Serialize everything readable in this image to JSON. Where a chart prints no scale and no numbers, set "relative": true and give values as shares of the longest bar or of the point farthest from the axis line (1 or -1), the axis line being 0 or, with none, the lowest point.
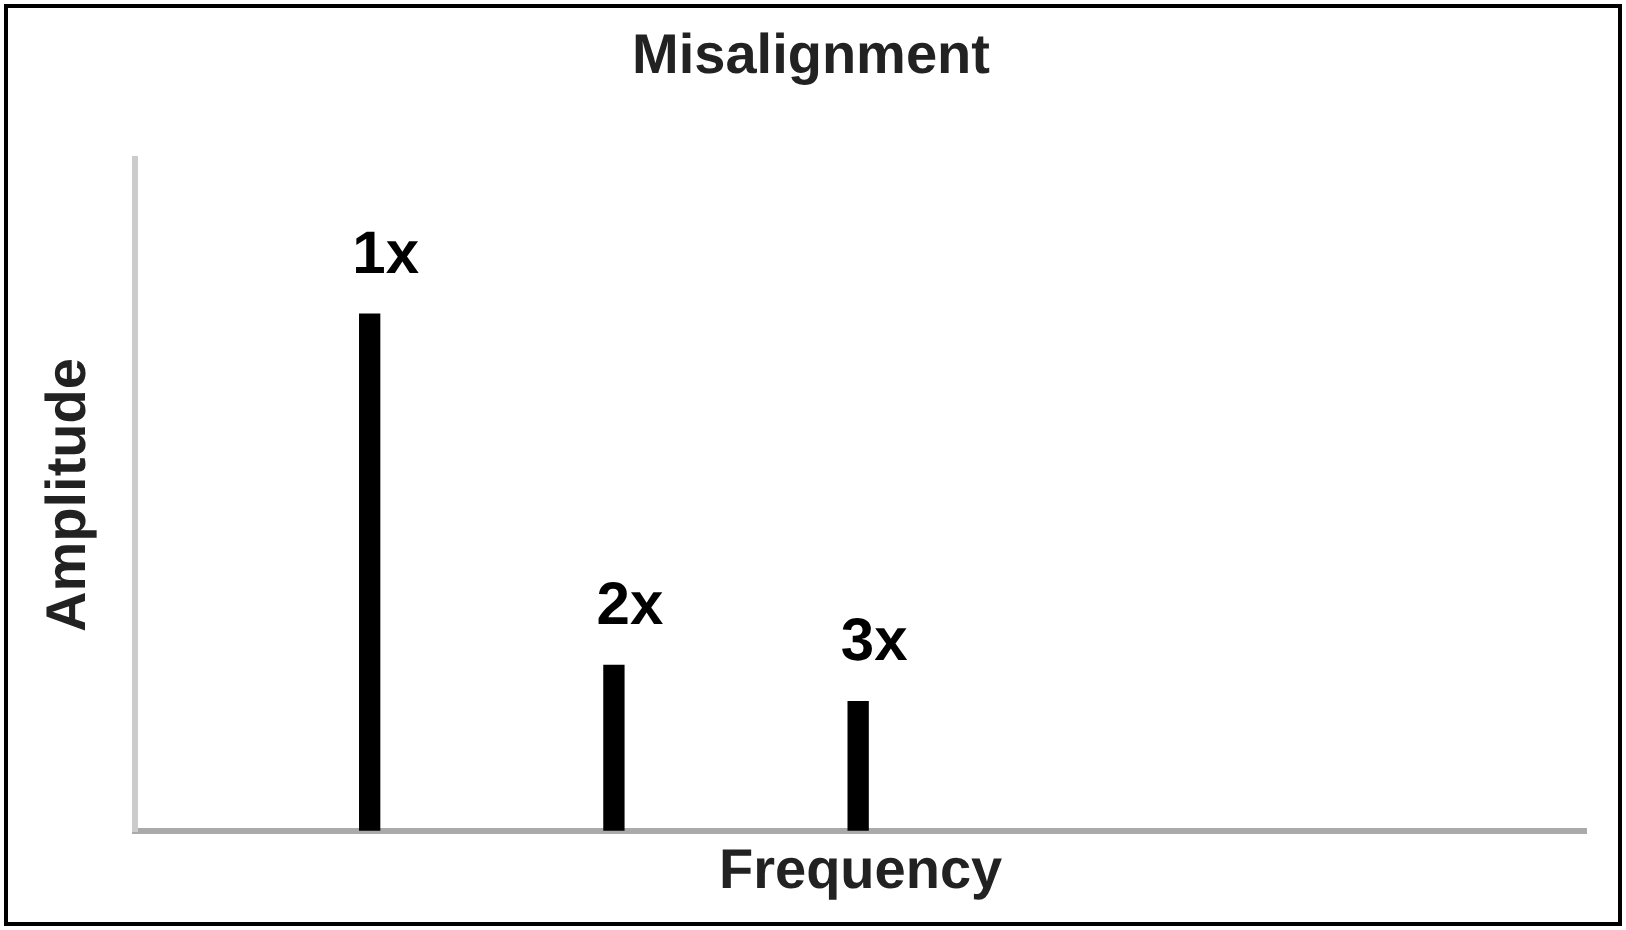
{
  "chart_data": {
    "type": "bar",
    "title": "Misalignment",
    "xlabel": "Frequency",
    "ylabel": "Amplitude",
    "relative": true,
    "categories": [
      null,
      null,
      null
    ],
    "values": [
      1,
      0.32,
      0.25
    ],
    "annotations": [
      "1x",
      "2x",
      "3x"
    ],
    "color": "#000000",
    "grid": false,
    "legend": false
  }
}
